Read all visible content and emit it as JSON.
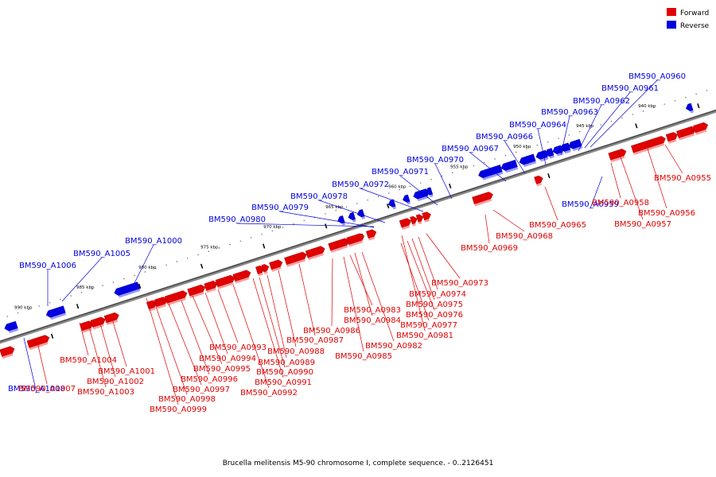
{
  "legend": {
    "forward": {
      "label": "Forward",
      "color": "#e00000"
    },
    "reverse": {
      "label": "Reverse",
      "color": "#0000e0"
    }
  },
  "caption": "Brucella melitensis M5-90 chromosome I, complete sequence. - 0..2126451",
  "ticks": [
    "940 kbp",
    "945 kbp",
    "950 kbp",
    "955 kbp",
    "960 kbp",
    "965 kbp",
    "970 kbp",
    "975 kbp",
    "980 kbp",
    "985 kbp",
    "990 kbp"
  ],
  "genes": [
    {
      "name": "BM590_A0960",
      "strand": "reverse"
    },
    {
      "name": "BM590_A0961",
      "strand": "reverse"
    },
    {
      "name": "BM590_A0962",
      "strand": "reverse"
    },
    {
      "name": "BM590_A0963",
      "strand": "reverse"
    },
    {
      "name": "BM590_A0964",
      "strand": "reverse"
    },
    {
      "name": "BM590_A0966",
      "strand": "reverse"
    },
    {
      "name": "BM590_A0967",
      "strand": "reverse"
    },
    {
      "name": "BM590_A0970",
      "strand": "reverse"
    },
    {
      "name": "BM590_A0971",
      "strand": "reverse"
    },
    {
      "name": "BM590_A0972",
      "strand": "reverse"
    },
    {
      "name": "BM590_A0978",
      "strand": "reverse"
    },
    {
      "name": "BM590_A0979",
      "strand": "reverse"
    },
    {
      "name": "BM590_A0980",
      "strand": "reverse"
    },
    {
      "name": "BM590_A1000",
      "strand": "reverse"
    },
    {
      "name": "BM590_A1005",
      "strand": "reverse"
    },
    {
      "name": "BM590_A1006",
      "strand": "reverse"
    },
    {
      "name": "BM590_A0959",
      "strand": "reverse"
    },
    {
      "name": "BM590_A1008",
      "strand": "reverse"
    },
    {
      "name": "BM590_A0955",
      "strand": "forward"
    },
    {
      "name": "BM590_A0956",
      "strand": "forward"
    },
    {
      "name": "BM590_A0957",
      "strand": "forward"
    },
    {
      "name": "BM590_A0958",
      "strand": "forward"
    },
    {
      "name": "BM590_A0965",
      "strand": "forward"
    },
    {
      "name": "BM590_A0968",
      "strand": "forward"
    },
    {
      "name": "BM590_A0969",
      "strand": "forward"
    },
    {
      "name": "BM590_A0973",
      "strand": "forward"
    },
    {
      "name": "BM590_A0974",
      "strand": "forward"
    },
    {
      "name": "BM590_A0975",
      "strand": "forward"
    },
    {
      "name": "BM590_A0976",
      "strand": "forward"
    },
    {
      "name": "BM590_A0977",
      "strand": "forward"
    },
    {
      "name": "BM590_A0981",
      "strand": "forward"
    },
    {
      "name": "BM590_A0982",
      "strand": "forward"
    },
    {
      "name": "BM590_A0983",
      "strand": "forward"
    },
    {
      "name": "BM590_A0984",
      "strand": "forward"
    },
    {
      "name": "BM590_A0985",
      "strand": "forward"
    },
    {
      "name": "BM590_A0986",
      "strand": "forward"
    },
    {
      "name": "BM590_A0987",
      "strand": "forward"
    },
    {
      "name": "BM590_A0988",
      "strand": "forward"
    },
    {
      "name": "BM590_A0989",
      "strand": "forward"
    },
    {
      "name": "BM590_A0990",
      "strand": "forward"
    },
    {
      "name": "BM590_A0991",
      "strand": "forward"
    },
    {
      "name": "BM590_A0992",
      "strand": "forward"
    },
    {
      "name": "BM590_A0993",
      "strand": "forward"
    },
    {
      "name": "BM590_A0994",
      "strand": "forward"
    },
    {
      "name": "BM590_A0995",
      "strand": "forward"
    },
    {
      "name": "BM590_A0996",
      "strand": "forward"
    },
    {
      "name": "BM590_A0997",
      "strand": "forward"
    },
    {
      "name": "BM590_A0998",
      "strand": "forward"
    },
    {
      "name": "BM590_A0999",
      "strand": "forward"
    },
    {
      "name": "BM590_A1001",
      "strand": "forward"
    },
    {
      "name": "BM590_A1002",
      "strand": "forward"
    },
    {
      "name": "BM590_A1003",
      "strand": "forward"
    },
    {
      "name": "BM590_A1004",
      "strand": "forward"
    },
    {
      "name": "BM590_A1007",
      "strand": "forward"
    }
  ]
}
